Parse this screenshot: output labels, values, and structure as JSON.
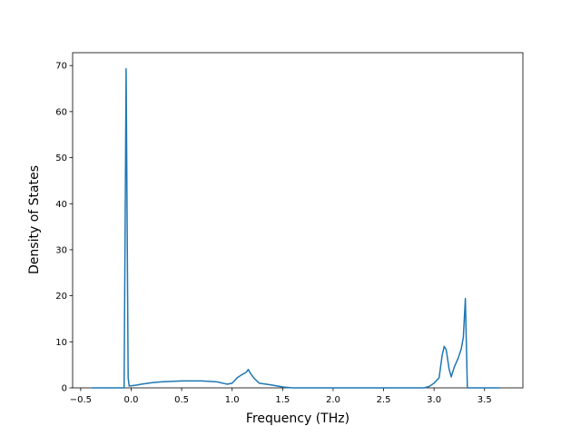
{
  "chart_data": {
    "type": "line",
    "xlabel": "Frequency (THz)",
    "ylabel": "Density of States",
    "x": [
      -0.39,
      -0.07,
      -0.05,
      -0.03,
      -0.02,
      0.05,
      0.1,
      0.2,
      0.3,
      0.5,
      0.7,
      0.85,
      0.95,
      1.0,
      1.05,
      1.1,
      1.14,
      1.16,
      1.18,
      1.22,
      1.27,
      1.4,
      1.5,
      1.6,
      2.9,
      2.95,
      3.0,
      3.05,
      3.08,
      3.1,
      3.12,
      3.15,
      3.17,
      3.2,
      3.24,
      3.27,
      3.29,
      3.31,
      3.33,
      3.65
    ],
    "series": [
      {
        "color": "#1f77b4",
        "values": [
          0,
          0,
          69.3,
          2.2,
          0.4,
          0.6,
          0.8,
          1.1,
          1.3,
          1.5,
          1.5,
          1.3,
          0.8,
          1.0,
          2.2,
          2.9,
          3.4,
          4.0,
          3.2,
          2.0,
          1.0,
          0.6,
          0.2,
          0,
          0,
          0.3,
          1.0,
          2.2,
          7.0,
          9.0,
          8.3,
          4.0,
          2.4,
          4.5,
          6.5,
          8.5,
          11,
          19.4,
          0,
          0
        ]
      }
    ],
    "xlim": [
      -0.58,
      3.88
    ],
    "xticks": [
      {
        "value": -0.5,
        "label": "−0.5"
      },
      {
        "value": 0,
        "label": "0.0"
      },
      {
        "value": 0.5,
        "label": "0.5"
      },
      {
        "value": 1,
        "label": "1.0"
      },
      {
        "value": 1.5,
        "label": "1.5"
      },
      {
        "value": 2,
        "label": "2.0"
      },
      {
        "value": 2.5,
        "label": "2.5"
      },
      {
        "value": 3,
        "label": "3.0"
      },
      {
        "value": 3.5,
        "label": "3.5"
      }
    ],
    "ylim": [
      0,
      72.8
    ],
    "yticks": [
      0,
      10,
      20,
      30,
      40,
      50,
      60,
      70
    ]
  }
}
